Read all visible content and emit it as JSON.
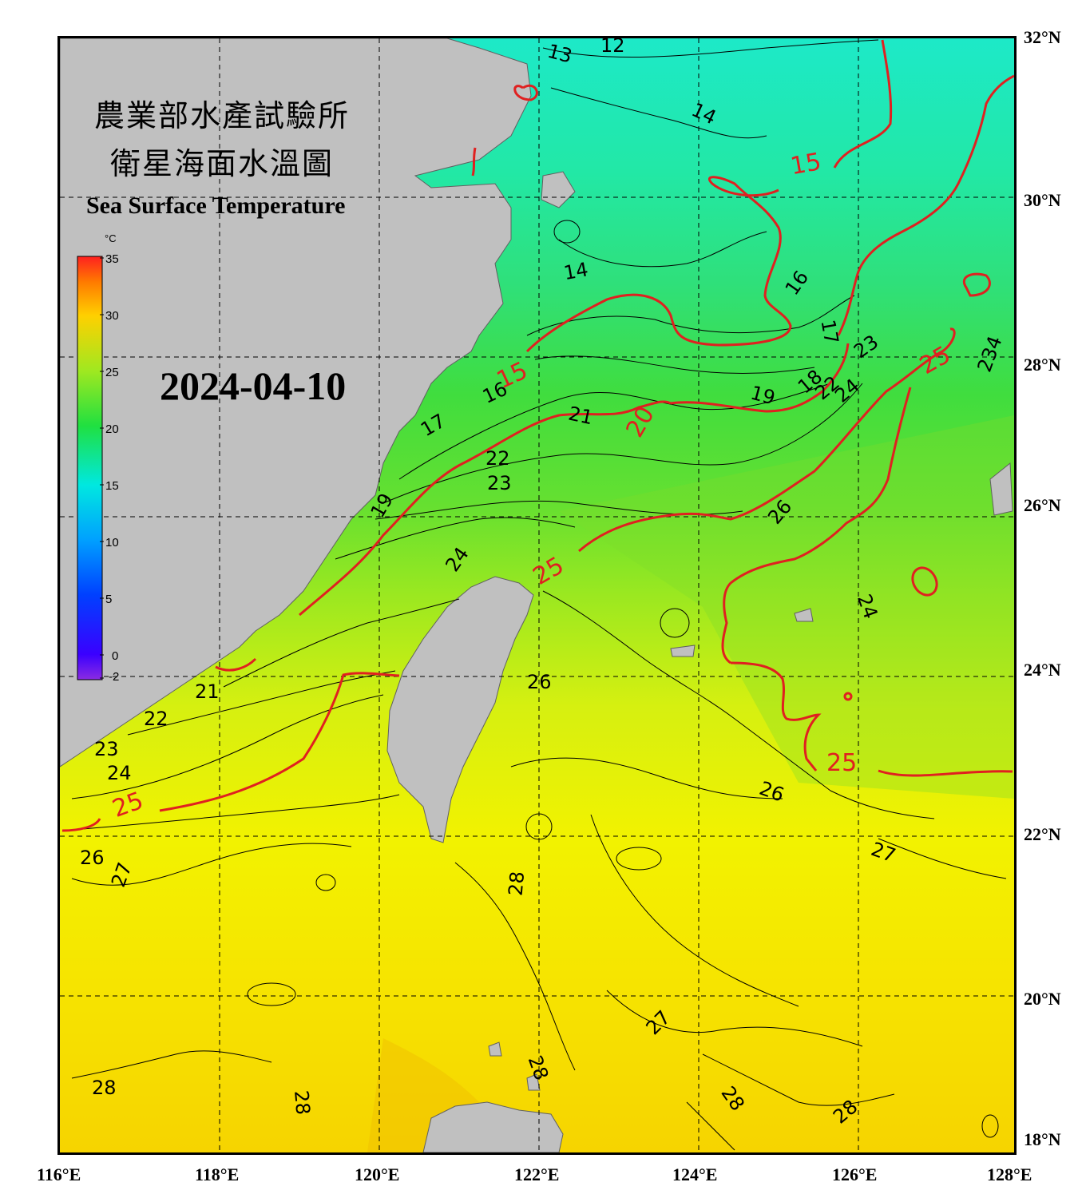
{
  "title": {
    "zh_line1": "農業部水產試驗所",
    "zh_line2": "衛星海面水溫圖",
    "en": "Sea Surface Temperature"
  },
  "date": "2024-04-10",
  "colorbar": {
    "unit": "°C",
    "min": -2,
    "max": 35,
    "ticks": [
      35,
      30,
      25,
      20,
      15,
      10,
      5,
      0,
      -2
    ]
  },
  "axes": {
    "lon_labels": [
      "116°E",
      "118°E",
      "120°E",
      "122°E",
      "124°E",
      "126°E",
      "128°E"
    ],
    "lat_labels": [
      "32°N",
      "30°N",
      "28°N",
      "26°N",
      "24°N",
      "22°N",
      "20°N",
      "18°N"
    ],
    "lon_range": [
      116,
      128
    ],
    "lat_range": [
      18,
      32
    ]
  },
  "colors": {
    "land": "#c0c0c0",
    "isotherm": "#000000",
    "isotherm_highlight": "#e02020",
    "frame": "#000000"
  },
  "isotherm_labels": {
    "black": [
      "13",
      "12",
      "14",
      "14",
      "16",
      "17",
      "16",
      "17",
      "23",
      "18",
      "22",
      "24",
      "19",
      "21",
      "22",
      "23",
      "19",
      "24",
      "26",
      "234",
      "26",
      "21",
      "22",
      "23",
      "24",
      "24",
      "26",
      "27",
      "28",
      "27",
      "26",
      "28",
      "28",
      "27",
      "28",
      "28",
      "28"
    ],
    "red": [
      "15",
      "15",
      "20",
      "25",
      "25",
      "25",
      "25"
    ]
  }
}
